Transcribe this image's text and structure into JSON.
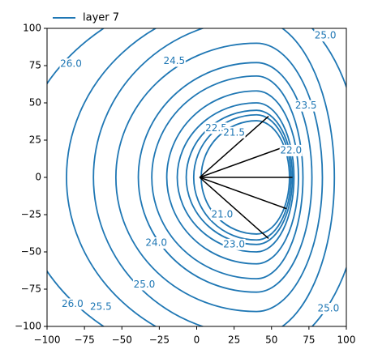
{
  "chart_data": {
    "type": "contour",
    "legend": {
      "name": "layer 7",
      "color": "#1f77b4",
      "position": "upper left"
    },
    "color": "#1f77b4",
    "xlim": [
      -100,
      100
    ],
    "ylim": [
      -100,
      100
    ],
    "xticks": [
      {
        "value": -100,
        "label": "−100"
      },
      {
        "value": -75,
        "label": "−75"
      },
      {
        "value": -50,
        "label": "−50"
      },
      {
        "value": -25,
        "label": "−25"
      },
      0,
      25,
      50,
      75,
      100
    ],
    "yticks": [
      {
        "value": -100,
        "label": "−100"
      },
      {
        "value": -75,
        "label": "−75"
      },
      {
        "value": -50,
        "label": "−50"
      },
      {
        "value": -25,
        "label": "−25"
      },
      0,
      25,
      50,
      75,
      100
    ],
    "center": [
      40,
      0
    ],
    "contours": [
      {
        "level": {
          "value": 26.0,
          "label": "26.0"
        },
        "left": 160,
        "right": 95,
        "half_height": 130,
        "labels_at": [
          [
            -84,
            76
          ],
          [
            -83,
            -85
          ]
        ]
      },
      {
        "level": {
          "value": 25.5,
          "label": "25.5"
        },
        "left": 127,
        "right": 70,
        "half_height": 118,
        "labels_at": [
          [
            -64,
            -87
          ]
        ]
      },
      {
        "level": {
          "value": 25.0,
          "label": "25.0"
        },
        "left": 109,
        "right": 52,
        "half_height": 106,
        "labels_at": [
          [
            86,
            95
          ],
          [
            -35,
            -72
          ],
          [
            88,
            -88
          ]
        ]
      },
      {
        "level": {
          "value": 24.5,
          "label": "24.5"
        },
        "left": 94,
        "right": 44,
        "half_height": 90,
        "labels_at": [
          [
            -15,
            78
          ]
        ]
      },
      {
        "level": {
          "value": 24.0,
          "label": "24.0"
        },
        "left": 79,
        "right": 37,
        "half_height": 77,
        "labels_at": [
          [
            -27,
            -44
          ]
        ]
      },
      {
        "level": {
          "value": 23.5,
          "label": "23.5"
        },
        "left": 70,
        "right": 31,
        "half_height": 68,
        "labels_at": [
          [
            73,
            48
          ]
        ]
      },
      {
        "level": {
          "value": 23.0,
          "label": "23.0"
        },
        "left": 60,
        "right": 28,
        "half_height": 58,
        "labels_at": [
          [
            25,
            -45
          ]
        ]
      },
      {
        "level": {
          "value": 22.5,
          "label": "22.5"
        },
        "left": 53,
        "right": 25,
        "half_height": 50,
        "labels_at": [
          [
            13,
            33
          ]
        ]
      },
      {
        "level": {
          "value": 22.0,
          "label": "22.0"
        },
        "left": 47,
        "right": 24,
        "half_height": 45,
        "labels_at": [
          [
            63,
            18
          ]
        ]
      },
      {
        "level": {
          "value": 21.5,
          "label": "21.5"
        },
        "left": 42,
        "right": 23,
        "half_height": 42,
        "labels_at": [
          [
            25,
            30
          ]
        ]
      },
      {
        "level": {
          "value": 21.0,
          "label": "21.0"
        },
        "left": 37,
        "right": 22,
        "half_height": 38,
        "labels_at": [
          [
            17,
            -25
          ]
        ]
      }
    ],
    "segments": {
      "color": "#000000",
      "from": [
        2,
        0
      ],
      "to": [
        [
          48,
          41
        ],
        [
          60,
          21
        ],
        [
          64,
          0
        ],
        [
          60,
          -21
        ],
        [
          48,
          -41
        ]
      ]
    }
  }
}
